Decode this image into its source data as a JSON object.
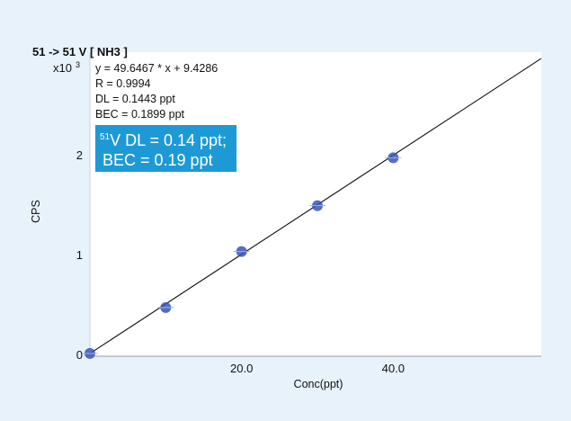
{
  "chart_data": {
    "type": "scatter",
    "title": "51 -> 51 V [ NH3 ]",
    "y_multiplier": "x10",
    "y_multiplier_exp": "3",
    "xlabel": "Conc(ppt)",
    "ylabel": "CPS",
    "x_ticks": [
      "20.0",
      "40.0"
    ],
    "y_ticks": [
      "0",
      "1",
      "2"
    ],
    "xlim": [
      0,
      60
    ],
    "ylim": [
      0,
      3.0
    ],
    "grid": false,
    "fit_equation": {
      "equation": "y = 49.6467 * x + 9.4286",
      "r": "R = 0.9994",
      "dl": "DL = 0.1443 ppt",
      "bec": "BEC = 0.1899 ppt"
    },
    "fit_line": {
      "slope": 49.6467,
      "intercept": 9.4286,
      "unit_scale": 1000
    },
    "callout": {
      "isotope_mass": "51",
      "line1": "V DL = 0.14 ppt;",
      "line2": "BEC = 0.19 ppt",
      "background": "#1d9ad6"
    },
    "series": [
      {
        "x": [
          0,
          10,
          20,
          30,
          40
        ],
        "y": [
          0.01,
          0.47,
          1.03,
          1.49,
          1.97
        ],
        "color": "#3556b5"
      }
    ]
  }
}
